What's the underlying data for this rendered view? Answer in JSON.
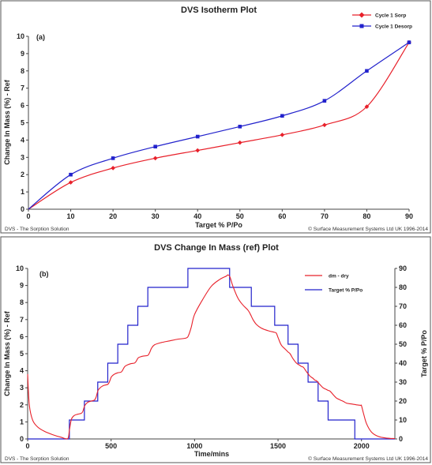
{
  "footer": {
    "left": "DVS - The Sorption Solution",
    "right": "© Surface Measurement Systems Ltd UK 1996-2014"
  },
  "colors": {
    "sorption": "#e8202a",
    "desorption": "#2222cc",
    "border": "#555555"
  },
  "chart_data": [
    {
      "type": "line",
      "title": "DVS Isotherm Plot",
      "panel_label": "(a)",
      "xlabel": "Target % P/Po",
      "ylabel": "Change In Mass (%) - Ref",
      "xlim": [
        0,
        90
      ],
      "ylim": [
        0,
        10
      ],
      "xticks": [
        0,
        10,
        20,
        30,
        40,
        50,
        60,
        70,
        80,
        90
      ],
      "yticks": [
        0,
        1,
        2,
        3,
        4,
        5,
        6,
        7,
        8,
        9,
        10
      ],
      "grid": false,
      "legend_position": "top-right",
      "series": [
        {
          "name": "Cycle 1 Sorp",
          "color": "#e8202a",
          "marker": "diamond",
          "x": [
            0,
            10,
            20,
            30,
            40,
            50,
            60,
            70,
            80,
            90
          ],
          "y": [
            0,
            1.55,
            2.38,
            2.95,
            3.4,
            3.85,
            4.3,
            4.87,
            5.93,
            9.65
          ]
        },
        {
          "name": "Cycle 1 Desorp",
          "color": "#2222cc",
          "marker": "square",
          "x": [
            0,
            10,
            20,
            30,
            40,
            50,
            60,
            70,
            80,
            90
          ],
          "y": [
            0,
            2.0,
            2.95,
            3.62,
            4.2,
            4.78,
            5.4,
            6.27,
            8.0,
            9.65
          ]
        }
      ]
    },
    {
      "type": "line",
      "title": "DVS Change In Mass (ref) Plot",
      "panel_label": "(b)",
      "xlabel": "Time/mins",
      "ylabel": "Change In Mass (%) - Ref",
      "y2label": "Target % P/Po",
      "xlim": [
        0,
        2200
      ],
      "ylim": [
        0,
        10
      ],
      "y2lim": [
        0,
        90
      ],
      "xticks": [
        0,
        500,
        1000,
        1500,
        2000
      ],
      "yticks": [
        0,
        1,
        2,
        3,
        4,
        5,
        6,
        7,
        8,
        9,
        10
      ],
      "y2ticks": [
        0,
        10,
        20,
        30,
        40,
        50,
        60,
        70,
        80,
        90
      ],
      "grid": false,
      "legend_position": "top-right",
      "series": [
        {
          "name": "dm - dry",
          "color": "#e8202a",
          "axis": "left",
          "x": [
            0,
            10,
            30,
            60,
            100,
            150,
            200,
            240,
            250,
            262,
            280,
            300,
            320,
            330,
            342,
            360,
            380,
            400,
            410,
            422,
            440,
            460,
            480,
            490,
            502,
            520,
            540,
            560,
            570,
            582,
            600,
            620,
            640,
            650,
            662,
            680,
            700,
            720,
            730,
            742,
            760,
            800,
            850,
            900,
            950,
            965,
            980,
            1000,
            1050,
            1100,
            1150,
            1190,
            1200,
            1212,
            1230,
            1260,
            1290,
            1320,
            1335,
            1350,
            1370,
            1400,
            1440,
            1480,
            1490,
            1502,
            1520,
            1545,
            1560,
            1572,
            1590,
            1610,
            1630,
            1640,
            1652,
            1670,
            1690,
            1710,
            1720,
            1732,
            1750,
            1770,
            1790,
            1800,
            1812,
            1830,
            1850,
            1870,
            1880,
            1892,
            1910,
            1940,
            1970,
            1995,
            2000,
            2012,
            2030,
            2060,
            2100,
            2150,
            2200
          ],
          "y": [
            3.8,
            2.0,
            1.1,
            0.7,
            0.45,
            0.25,
            0.1,
            0.02,
            0.5,
            1.15,
            1.38,
            1.45,
            1.5,
            1.6,
            1.95,
            2.15,
            2.22,
            2.28,
            2.45,
            2.85,
            3.05,
            3.15,
            3.2,
            3.35,
            3.65,
            3.8,
            3.88,
            3.92,
            4.05,
            4.25,
            4.35,
            4.42,
            4.45,
            4.55,
            4.75,
            4.83,
            4.87,
            4.9,
            5.05,
            5.32,
            5.52,
            5.65,
            5.75,
            5.85,
            5.92,
            6.1,
            6.55,
            7.3,
            8.2,
            8.95,
            9.35,
            9.55,
            9.62,
            9.5,
            8.95,
            8.25,
            7.85,
            7.55,
            7.3,
            7.0,
            6.72,
            6.5,
            6.35,
            6.25,
            6.2,
            5.9,
            5.5,
            5.25,
            5.1,
            5.0,
            4.7,
            4.45,
            4.32,
            4.25,
            4.2,
            3.95,
            3.7,
            3.55,
            3.45,
            3.4,
            3.2,
            3.0,
            2.9,
            2.85,
            2.8,
            2.6,
            2.4,
            2.3,
            2.25,
            2.2,
            2.1,
            2.05,
            2.0,
            1.97,
            1.95,
            1.5,
            0.9,
            0.4,
            0.15,
            0.05,
            0.02
          ]
        },
        {
          "name": "Target % P/Po",
          "color": "#2222cc",
          "axis": "right",
          "x": [
            0,
            250,
            250,
            340,
            340,
            420,
            420,
            480,
            480,
            540,
            540,
            600,
            600,
            660,
            660,
            720,
            720,
            780,
            780,
            960,
            960,
            1210,
            1210,
            1340,
            1340,
            1480,
            1480,
            1560,
            1560,
            1620,
            1620,
            1680,
            1680,
            1740,
            1740,
            1800,
            1800,
            1860,
            1860,
            1960,
            1960,
            2200
          ],
          "y": [
            0,
            0,
            10,
            10,
            20,
            20,
            30,
            30,
            40,
            40,
            50,
            50,
            60,
            60,
            70,
            70,
            80,
            80,
            80,
            80,
            90,
            90,
            80,
            80,
            70,
            70,
            60,
            60,
            50,
            50,
            40,
            40,
            30,
            30,
            20,
            20,
            10,
            10,
            10,
            10,
            0,
            0
          ]
        }
      ]
    }
  ]
}
